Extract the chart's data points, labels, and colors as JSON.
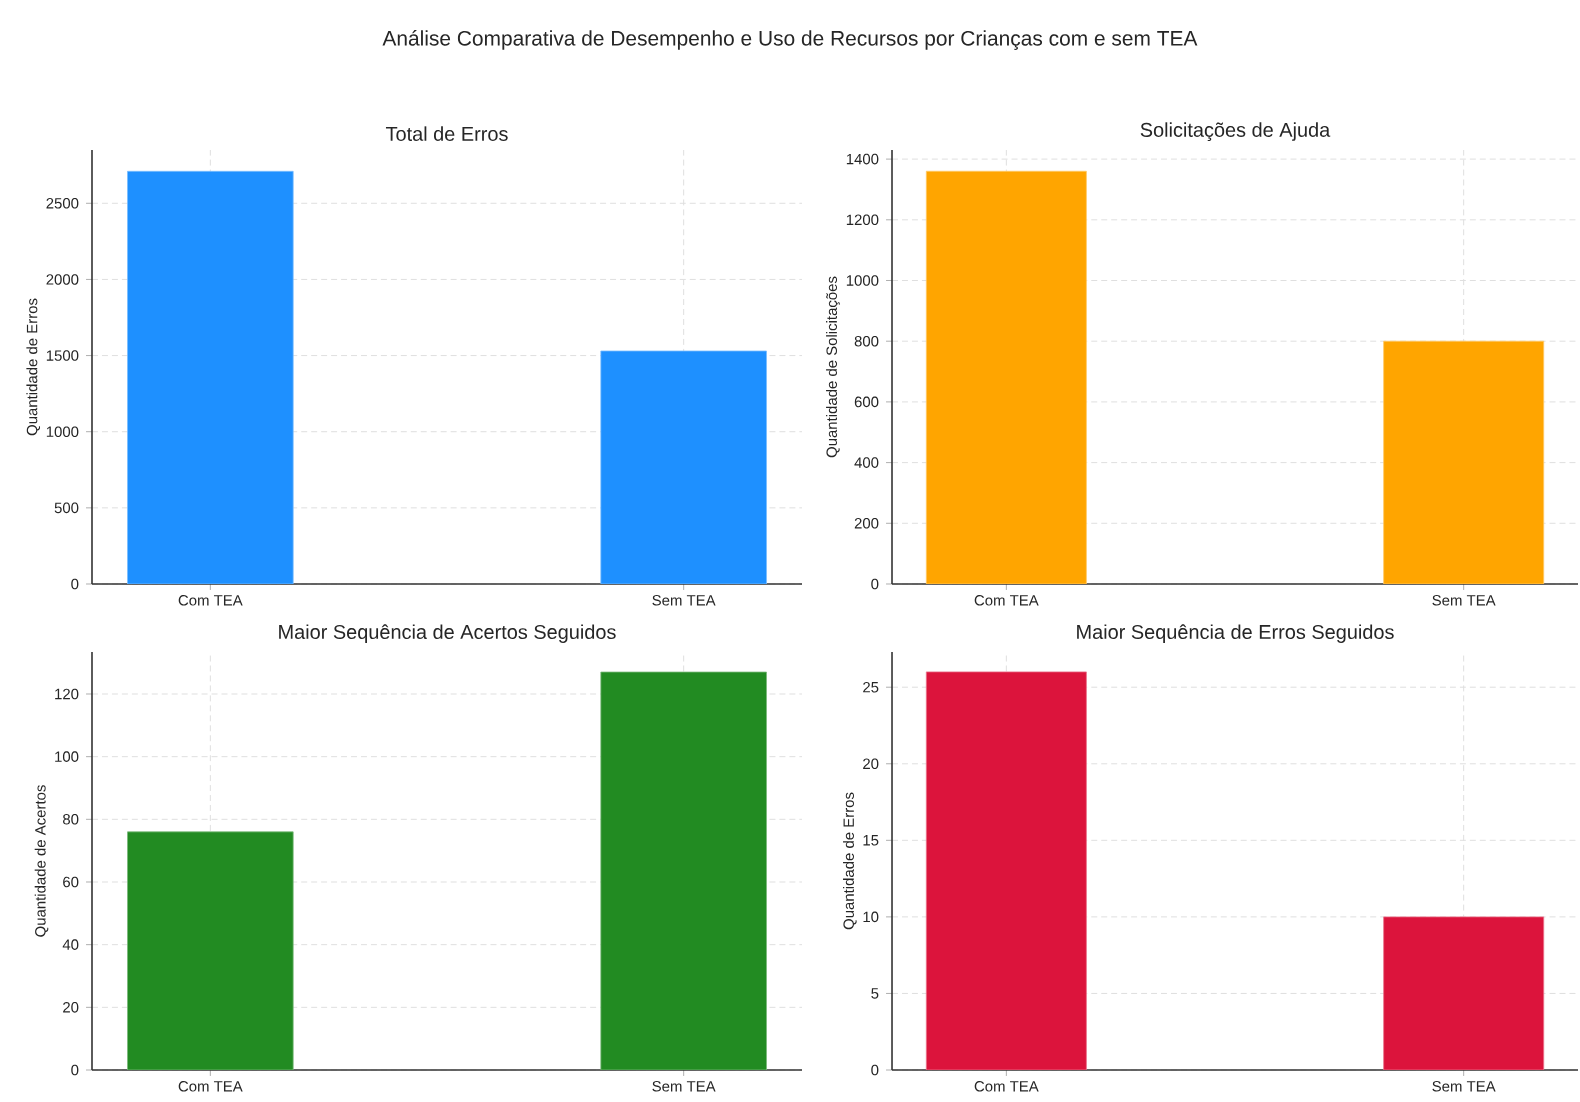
{
  "chart_data": [
    {
      "type": "bar",
      "title": "Total de Erros",
      "ylabel": "Quantidade de Erros",
      "annotations": [
        "Análise Comparativa de Desempenho e Uso de Recursos por Crianças com e sem TEA"
      ],
      "categories": [
        "Com TEA",
        "Sem TEA"
      ],
      "values": [
        2710,
        1530
      ],
      "color": "#1e90ff",
      "ylim": [
        0,
        2850
      ],
      "yticks": [
        0,
        500,
        1000,
        1500,
        2000,
        2500
      ],
      "grid": true
    },
    {
      "type": "bar",
      "title": "Solicitações de Ajuda",
      "ylabel": "Quantidade de Solicitações",
      "categories": [
        "Com TEA",
        "Sem TEA"
      ],
      "values": [
        1360,
        800
      ],
      "color": "#ffa500",
      "ylim": [
        0,
        1430
      ],
      "yticks": [
        0,
        200,
        400,
        600,
        800,
        1000,
        1200,
        1400
      ],
      "grid": true
    },
    {
      "type": "bar",
      "title": "Maior Sequência de Acertos Seguidos",
      "ylabel": "Quantidade de Acertos",
      "categories": [
        "Com TEA",
        "Sem TEA"
      ],
      "values": [
        76,
        127
      ],
      "color": "#228b22",
      "ylim": [
        0,
        133.4
      ],
      "yticks": [
        0,
        20,
        40,
        60,
        80,
        100,
        120
      ],
      "grid": true
    },
    {
      "type": "bar",
      "title": "Maior Sequência de Erros Seguidos",
      "ylabel": "Quantidade de Erros",
      "categories": [
        "Com TEA",
        "Sem TEA"
      ],
      "values": [
        26,
        10
      ],
      "color": "#dc143c",
      "ylim": [
        0,
        27.3
      ],
      "yticks": [
        0,
        5,
        10,
        15,
        20,
        25
      ],
      "grid": true
    }
  ]
}
